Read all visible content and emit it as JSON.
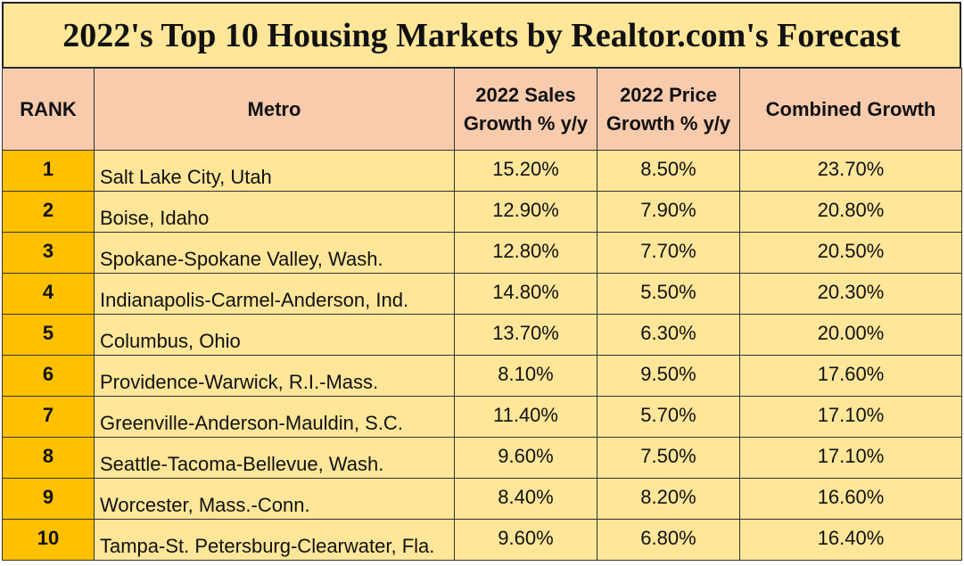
{
  "title": "2022's Top 10 Housing Markets by Realtor.com's Forecast",
  "colors": {
    "title_bg": "#FFE699",
    "header_bg": "#F8CBAD",
    "rank_bg": "#FFC000",
    "body_bg": "#FFE699"
  },
  "headers": [
    "RANK",
    "Metro",
    "2022 Sales Growth % y/y",
    "2022 Price Growth % y/y",
    "Combined Growth"
  ],
  "rows": [
    {
      "rank": "1",
      "metro": "Salt Lake City, Utah",
      "sales": "15.20%",
      "price": "8.50%",
      "combined": "23.70%"
    },
    {
      "rank": "2",
      "metro": "Boise, Idaho",
      "sales": "12.90%",
      "price": "7.90%",
      "combined": "20.80%"
    },
    {
      "rank": "3",
      "metro": "Spokane-Spokane Valley, Wash.",
      "sales": "12.80%",
      "price": "7.70%",
      "combined": "20.50%"
    },
    {
      "rank": "4",
      "metro": "Indianapolis-Carmel-Anderson, Ind.",
      "sales": "14.80%",
      "price": "5.50%",
      "combined": "20.30%"
    },
    {
      "rank": "5",
      "metro": "Columbus, Ohio",
      "sales": "13.70%",
      "price": "6.30%",
      "combined": "20.00%"
    },
    {
      "rank": "6",
      "metro": "Providence-Warwick, R.I.-Mass.",
      "sales": "8.10%",
      "price": "9.50%",
      "combined": "17.60%"
    },
    {
      "rank": "7",
      "metro": "Greenville-Anderson-Mauldin, S.C.",
      "sales": "11.40%",
      "price": "5.70%",
      "combined": "17.10%"
    },
    {
      "rank": "8",
      "metro": "Seattle-Tacoma-Bellevue, Wash.",
      "sales": "9.60%",
      "price": "7.50%",
      "combined": "17.10%"
    },
    {
      "rank": "9",
      "metro": "Worcester, Mass.-Conn.",
      "sales": "8.40%",
      "price": "8.20%",
      "combined": "16.60%"
    },
    {
      "rank": "10",
      "metro": "Tampa-St. Petersburg-Clearwater, Fla.",
      "sales": "9.60%",
      "price": "6.80%",
      "combined": "16.40%"
    }
  ]
}
